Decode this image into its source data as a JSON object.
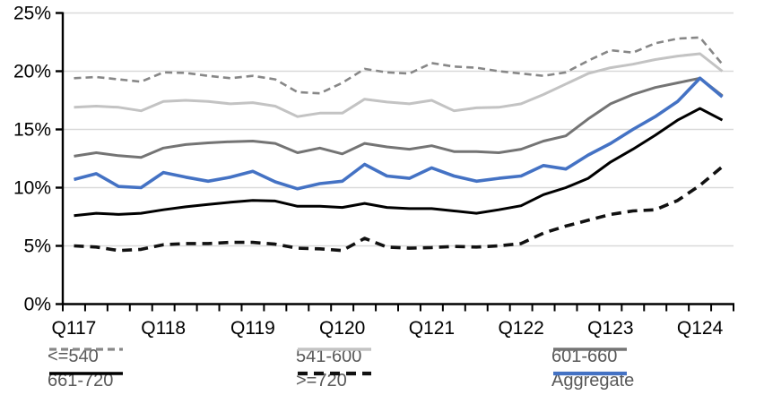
{
  "chart_data": {
    "type": "line",
    "title": "",
    "xlabel": "",
    "ylabel": "",
    "ylim": [
      0,
      25
    ],
    "y_tick_step": 5,
    "y_tick_labels": [
      "0%",
      "5%",
      "10%",
      "15%",
      "20%",
      "25%"
    ],
    "grid": "horizontal",
    "gridline_color": "#d9d9d9",
    "axis_color": "#000000",
    "axis_label_color": "#000000",
    "legend_text_color": "#595959",
    "legend_position": "bottom",
    "x_tick_labels": [
      "Q117",
      "Q118",
      "Q119",
      "Q120",
      "Q121",
      "Q122",
      "Q123",
      "Q124"
    ],
    "x_label_slot_step": 4,
    "categories": [
      "Q117",
      "Q217",
      "Q317",
      "Q417",
      "Q118",
      "Q218",
      "Q318",
      "Q418",
      "Q119",
      "Q219",
      "Q319",
      "Q419",
      "Q120",
      "Q220",
      "Q320",
      "Q420",
      "Q121",
      "Q221",
      "Q321",
      "Q421",
      "Q122",
      "Q222",
      "Q322",
      "Q422",
      "Q123",
      "Q223",
      "Q323",
      "Q423",
      "Q124",
      "Q224"
    ],
    "series": [
      {
        "name": "<=540",
        "color": "#878787",
        "width": 2.6,
        "dash": "8 5",
        "values": [
          19.4,
          19.5,
          19.3,
          19.1,
          19.9,
          19.85,
          19.6,
          19.4,
          19.6,
          19.3,
          18.2,
          18.1,
          19.0,
          20.2,
          19.9,
          19.8,
          20.7,
          20.4,
          20.3,
          20.0,
          19.8,
          19.6,
          19.9,
          20.9,
          21.8,
          21.6,
          22.4,
          22.8,
          22.9,
          20.6
        ]
      },
      {
        "name": "541-600",
        "color": "#c3c3c3",
        "width": 3,
        "dash": "",
        "values": [
          16.9,
          17.0,
          16.9,
          16.6,
          17.4,
          17.5,
          17.4,
          17.2,
          17.3,
          17.0,
          16.1,
          16.4,
          16.4,
          17.6,
          17.35,
          17.2,
          17.5,
          16.6,
          16.85,
          16.9,
          17.2,
          18.0,
          18.9,
          19.8,
          20.3,
          20.6,
          21.0,
          21.3,
          21.5,
          20.0
        ]
      },
      {
        "name": "601-660",
        "color": "#747474",
        "width": 3,
        "dash": "",
        "values": [
          12.7,
          13.0,
          12.75,
          12.6,
          13.4,
          13.7,
          13.85,
          13.95,
          14.0,
          13.8,
          13.0,
          13.4,
          12.9,
          13.8,
          13.5,
          13.3,
          13.6,
          13.1,
          13.1,
          13.0,
          13.3,
          14.0,
          14.45,
          15.9,
          17.2,
          18.0,
          18.6,
          19.0,
          19.4,
          17.9
        ]
      },
      {
        "name": "661-720",
        "color": "#000000",
        "width": 3,
        "dash": "",
        "values": [
          7.6,
          7.8,
          7.7,
          7.8,
          8.1,
          8.35,
          8.55,
          8.75,
          8.9,
          8.85,
          8.4,
          8.4,
          8.3,
          8.65,
          8.3,
          8.2,
          8.2,
          8.0,
          7.8,
          8.1,
          8.45,
          9.4,
          10.0,
          10.8,
          12.2,
          13.3,
          14.5,
          15.8,
          16.8,
          15.8
        ]
      },
      {
        "name": ">=720",
        "color": "#111111",
        "width": 3.6,
        "dash": "11 7",
        "values": [
          5.0,
          4.9,
          4.6,
          4.7,
          5.1,
          5.2,
          5.2,
          5.3,
          5.3,
          5.15,
          4.8,
          4.75,
          4.6,
          5.65,
          4.9,
          4.8,
          4.85,
          4.95,
          4.9,
          5.0,
          5.2,
          6.1,
          6.7,
          7.2,
          7.7,
          8.0,
          8.1,
          8.9,
          10.2,
          11.8
        ]
      },
      {
        "name": "Aggregate",
        "color": "#4472c4",
        "width": 3.6,
        "dash": "",
        "values": [
          10.7,
          11.2,
          10.1,
          10.0,
          11.3,
          10.9,
          10.55,
          10.9,
          11.4,
          10.5,
          9.9,
          10.35,
          10.55,
          12.0,
          11.0,
          10.8,
          11.7,
          11.0,
          10.55,
          10.8,
          11.0,
          11.9,
          11.6,
          12.8,
          13.8,
          15.0,
          16.1,
          17.4,
          19.4,
          17.8
        ]
      }
    ]
  }
}
